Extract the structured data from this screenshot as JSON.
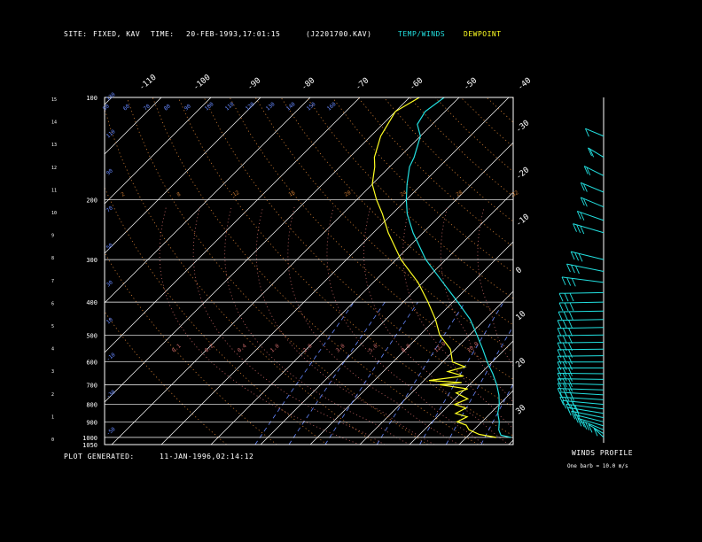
{
  "header": {
    "site_label": "SITE:",
    "site_value": "FIXED, KAV",
    "time_label": "TIME:",
    "time_value": "20-FEB-1993,17:01:15",
    "file_id": "(J2201700.KAV)",
    "temp_winds_label": "TEMP/WINDS",
    "dewpoint_label": "DEWPOINT"
  },
  "footer": {
    "generated_label": "PLOT GENERATED:",
    "generated_value": "11-JAN-1996,02:14:12"
  },
  "winds_panel": {
    "title": "WINDS PROFILE",
    "note": "One barb = 10.0 m/s"
  },
  "colors": {
    "background": "#000000",
    "frame": "#ffffff",
    "temperature": "#22e0e0",
    "dewpoint": "#ffff22",
    "isotherm": "#ffffff",
    "dry_adiabat": "#c87830",
    "moist_adiabat": "#d06a6a",
    "mixing_ratio": "#6688ff",
    "isobar": "#ffffff",
    "wind": "#22e0e0"
  },
  "chart_data": {
    "type": "skew-t",
    "title": "",
    "pressure_axis": {
      "labels": [
        "100",
        "200",
        "300",
        "400",
        "500",
        "600",
        "700",
        "800",
        "900",
        "1000",
        "1050"
      ],
      "values": [
        100,
        200,
        300,
        400,
        500,
        600,
        700,
        800,
        900,
        1000,
        1050
      ],
      "scale": "log",
      "range": [
        1050,
        100
      ]
    },
    "height_axis": {
      "labels": [
        "0",
        "1",
        "2",
        "3",
        "4",
        "5",
        "6",
        "7",
        "8",
        "9",
        "10",
        "11",
        "12",
        "13",
        "14",
        "15"
      ],
      "unit": "km"
    },
    "temperature_axis": {
      "top_labels": [
        "-110",
        "-100",
        "-90",
        "-80",
        "-70",
        "-60",
        "-50",
        "-40"
      ],
      "right_labels": [
        "-30",
        "-20",
        "-10",
        "0",
        "10",
        "20",
        "30"
      ],
      "unit": "C"
    },
    "dry_adiabat_labels": [
      "-50",
      "-30",
      "-10",
      "10",
      "30",
      "50",
      "70",
      "90",
      "110",
      "130"
    ],
    "theta_labels_top": [
      "50",
      "60",
      "70",
      "80",
      "90",
      "100",
      "110",
      "120",
      "130",
      "140",
      "150",
      "160"
    ],
    "mixing_ratio_labels": [
      "0.1",
      "0.2",
      "0.4",
      "1.0",
      "2.0",
      "3.0",
      "5.0",
      "8.0",
      "12.0",
      "20.0"
    ],
    "upper_labels": [
      "2",
      "8",
      "12",
      "16",
      "20",
      "24",
      "28",
      "32"
    ],
    "temperature_profile": [
      {
        "p": 1000,
        "t": 9.0
      },
      {
        "p": 985,
        "t": 6.5
      },
      {
        "p": 950,
        "t": 5.0
      },
      {
        "p": 900,
        "t": 3.5
      },
      {
        "p": 850,
        "t": 1.5
      },
      {
        "p": 800,
        "t": 0.0
      },
      {
        "p": 750,
        "t": -2.0
      },
      {
        "p": 700,
        "t": -4.5
      },
      {
        "p": 650,
        "t": -7.5
      },
      {
        "p": 600,
        "t": -11.0
      },
      {
        "p": 550,
        "t": -14.5
      },
      {
        "p": 500,
        "t": -18.5
      },
      {
        "p": 450,
        "t": -23.0
      },
      {
        "p": 400,
        "t": -29.0
      },
      {
        "p": 350,
        "t": -36.0
      },
      {
        "p": 300,
        "t": -44.0
      },
      {
        "p": 250,
        "t": -52.0
      },
      {
        "p": 220,
        "t": -57.0
      },
      {
        "p": 200,
        "t": -60.0
      },
      {
        "p": 180,
        "t": -63.0
      },
      {
        "p": 160,
        "t": -66.0
      },
      {
        "p": 150,
        "t": -67.0
      },
      {
        "p": 130,
        "t": -70.0
      },
      {
        "p": 120,
        "t": -73.0
      },
      {
        "p": 110,
        "t": -74.0
      },
      {
        "p": 100,
        "t": -73.0
      }
    ],
    "dewpoint_profile": [
      {
        "p": 1000,
        "t": 6.0
      },
      {
        "p": 980,
        "t": 2.0
      },
      {
        "p": 950,
        "t": -1.0
      },
      {
        "p": 920,
        "t": -2.5
      },
      {
        "p": 900,
        "t": -5.0
      },
      {
        "p": 870,
        "t": -4.0
      },
      {
        "p": 850,
        "t": -7.0
      },
      {
        "p": 820,
        "t": -6.0
      },
      {
        "p": 800,
        "t": -9.0
      },
      {
        "p": 770,
        "t": -7.5
      },
      {
        "p": 740,
        "t": -11.0
      },
      {
        "p": 720,
        "t": -9.5
      },
      {
        "p": 700,
        "t": -16.0
      },
      {
        "p": 690,
        "t": -12.0
      },
      {
        "p": 680,
        "t": -19.0
      },
      {
        "p": 660,
        "t": -13.0
      },
      {
        "p": 640,
        "t": -17.0
      },
      {
        "p": 620,
        "t": -14.5
      },
      {
        "p": 600,
        "t": -18.0
      },
      {
        "p": 550,
        "t": -21.0
      },
      {
        "p": 500,
        "t": -26.0
      },
      {
        "p": 450,
        "t": -30.0
      },
      {
        "p": 400,
        "t": -35.0
      },
      {
        "p": 350,
        "t": -41.0
      },
      {
        "p": 300,
        "t": -49.0
      },
      {
        "p": 250,
        "t": -57.0
      },
      {
        "p": 220,
        "t": -62.0
      },
      {
        "p": 200,
        "t": -66.0
      },
      {
        "p": 180,
        "t": -70.0
      },
      {
        "p": 160,
        "t": -73.0
      },
      {
        "p": 150,
        "t": -75.0
      },
      {
        "p": 130,
        "t": -78.0
      },
      {
        "p": 110,
        "t": -80.0
      },
      {
        "p": 100,
        "t": -78.0
      }
    ],
    "wind_profile": [
      {
        "p": 1000,
        "speed": 12,
        "dir": 20
      },
      {
        "p": 975,
        "speed": 14,
        "dir": 30
      },
      {
        "p": 950,
        "speed": 16,
        "dir": 40
      },
      {
        "p": 925,
        "speed": 18,
        "dir": 50
      },
      {
        "p": 900,
        "speed": 20,
        "dir": 55
      },
      {
        "p": 875,
        "speed": 22,
        "dir": 60
      },
      {
        "p": 850,
        "speed": 25,
        "dir": 65
      },
      {
        "p": 825,
        "speed": 25,
        "dir": 70
      },
      {
        "p": 800,
        "speed": 28,
        "dir": 75
      },
      {
        "p": 775,
        "speed": 30,
        "dir": 80
      },
      {
        "p": 750,
        "speed": 30,
        "dir": 80
      },
      {
        "p": 725,
        "speed": 32,
        "dir": 85
      },
      {
        "p": 700,
        "speed": 33,
        "dir": 85
      },
      {
        "p": 675,
        "speed": 33,
        "dir": 88
      },
      {
        "p": 650,
        "speed": 34,
        "dir": 88
      },
      {
        "p": 625,
        "speed": 35,
        "dir": 90
      },
      {
        "p": 600,
        "speed": 35,
        "dir": 90
      },
      {
        "p": 575,
        "speed": 34,
        "dir": 92
      },
      {
        "p": 550,
        "speed": 33,
        "dir": 92
      },
      {
        "p": 525,
        "speed": 33,
        "dir": 92
      },
      {
        "p": 500,
        "speed": 32,
        "dir": 92
      },
      {
        "p": 475,
        "speed": 32,
        "dir": 93
      },
      {
        "p": 450,
        "speed": 32,
        "dir": 93
      },
      {
        "p": 425,
        "speed": 31,
        "dir": 93
      },
      {
        "p": 400,
        "speed": 30,
        "dir": 93
      },
      {
        "p": 375,
        "speed": 30,
        "dir": 93
      },
      {
        "p": 350,
        "speed": 30,
        "dir": 70
      },
      {
        "p": 325,
        "speed": 28,
        "dir": 60
      },
      {
        "p": 300,
        "speed": 25,
        "dir": 55
      },
      {
        "p": 250,
        "speed": 25,
        "dir": 50
      },
      {
        "p": 230,
        "speed": 22,
        "dir": 45
      },
      {
        "p": 210,
        "speed": 20,
        "dir": 40
      },
      {
        "p": 190,
        "speed": 20,
        "dir": 40
      },
      {
        "p": 170,
        "speed": 18,
        "dir": 35
      },
      {
        "p": 150,
        "speed": 15,
        "dir": 30
      },
      {
        "p": 130,
        "speed": 12,
        "dir": 40
      }
    ]
  }
}
